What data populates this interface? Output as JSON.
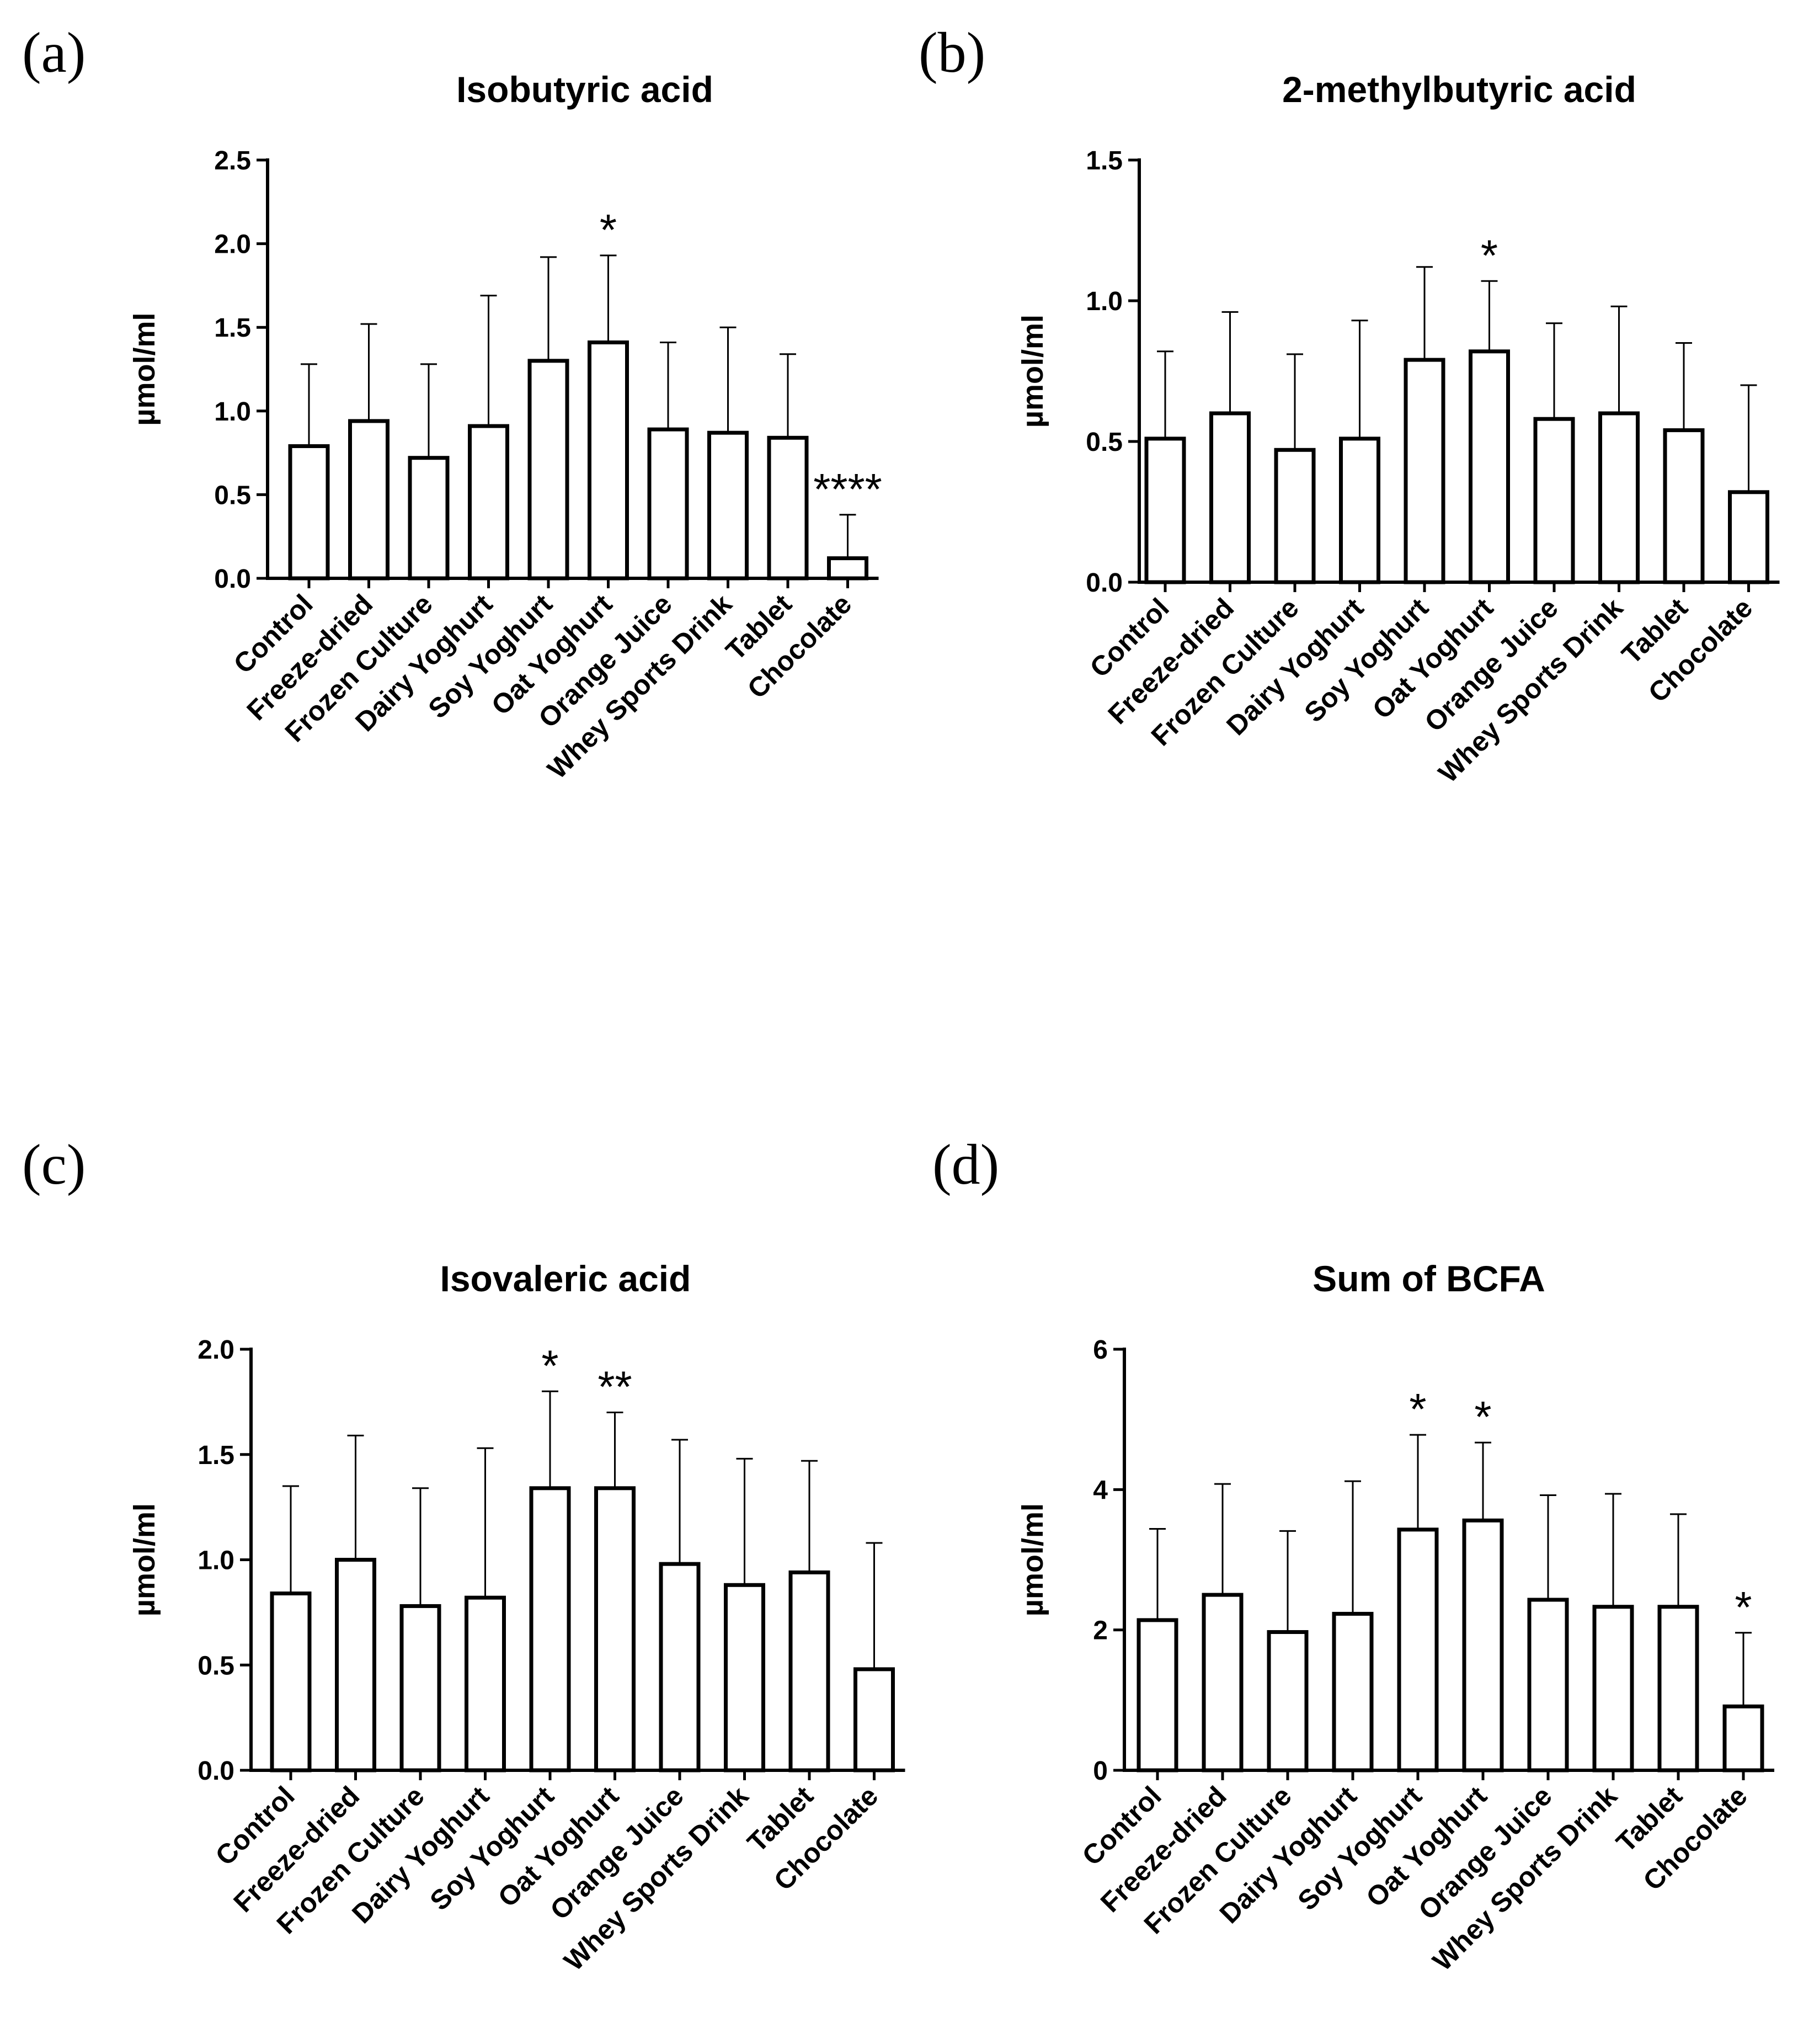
{
  "chart_data": [
    {
      "panel": "(a)",
      "type": "bar",
      "title": "Isobutyric acid",
      "ylabel": "µmol/ml",
      "xlabel": "",
      "categories": [
        "Control",
        "Freeze-dried",
        "Frozen Culture",
        "Dairy Yoghurt",
        "Soy Yoghurt",
        "Oat Yoghurt",
        "Orange Juice",
        "Whey Sports Drink",
        "Tablet",
        "Chocolate"
      ],
      "values": [
        0.79,
        0.94,
        0.72,
        0.91,
        1.3,
        1.41,
        0.89,
        0.87,
        0.84,
        0.12
      ],
      "error_upper": [
        1.28,
        1.52,
        1.28,
        1.69,
        1.92,
        1.93,
        1.41,
        1.5,
        1.34,
        0.38
      ],
      "significance": [
        "",
        "",
        "",
        "",
        "",
        "*",
        "",
        "",
        "",
        "****"
      ],
      "ylim": [
        0,
        2.5
      ],
      "yticks": [
        0.0,
        0.5,
        1.0,
        1.5,
        2.0,
        2.5
      ],
      "ytick_labels": [
        "0.0",
        "0.5",
        "1.0",
        "1.5",
        "2.0",
        "2.5"
      ],
      "grid": false
    },
    {
      "panel": "(b)",
      "type": "bar",
      "title": "2-methylbutyric acid",
      "ylabel": "µmol/ml",
      "xlabel": "",
      "categories": [
        "Control",
        "Freeze-dried",
        "Frozen Culture",
        "Dairy Yoghurt",
        "Soy Yoghurt",
        "Oat Yoghurt",
        "Orange Juice",
        "Whey Sports Drink",
        "Tablet",
        "Chocolate"
      ],
      "values": [
        0.51,
        0.6,
        0.47,
        0.51,
        0.79,
        0.82,
        0.58,
        0.6,
        0.54,
        0.32
      ],
      "error_upper": [
        0.82,
        0.96,
        0.81,
        0.93,
        1.12,
        1.07,
        0.92,
        0.98,
        0.85,
        0.7
      ],
      "significance": [
        "",
        "",
        "",
        "",
        "",
        "*",
        "",
        "",
        "",
        ""
      ],
      "ylim": [
        0,
        1.5
      ],
      "yticks": [
        0.0,
        0.5,
        1.0,
        1.5
      ],
      "ytick_labels": [
        "0.0",
        "0.5",
        "1.0",
        "1.5"
      ],
      "grid": false
    },
    {
      "panel": "(c)",
      "type": "bar",
      "title": "Isovaleric acid",
      "ylabel": "µmol/ml",
      "xlabel": "",
      "categories": [
        "Control",
        "Freeze-dried",
        "Frozen Culture",
        "Dairy Yoghurt",
        "Soy Yoghurt",
        "Oat Yoghurt",
        "Orange Juice",
        "Whey Sports Drink",
        "Tablet",
        "Chocolate"
      ],
      "values": [
        0.84,
        1.0,
        0.78,
        0.82,
        1.34,
        1.34,
        0.98,
        0.88,
        0.94,
        0.48
      ],
      "error_upper": [
        1.35,
        1.59,
        1.34,
        1.53,
        1.8,
        1.7,
        1.57,
        1.48,
        1.47,
        1.08
      ],
      "significance": [
        "",
        "",
        "",
        "",
        "*",
        "**",
        "",
        "",
        "",
        ""
      ],
      "ylim": [
        0,
        2.0
      ],
      "yticks": [
        0.0,
        0.5,
        1.0,
        1.5,
        2.0
      ],
      "ytick_labels": [
        "0.0",
        "0.5",
        "1.0",
        "1.5",
        "2.0"
      ],
      "grid": false
    },
    {
      "panel": "(d)",
      "type": "bar",
      "title": "Sum of BCFA",
      "ylabel": "µmol/ml",
      "xlabel": "",
      "categories": [
        "Control",
        "Freeze-dried",
        "Frozen Culture",
        "Dairy Yoghurt",
        "Soy Yoghurt",
        "Oat Yoghurt",
        "Orange Juice",
        "Whey Sports Drink",
        "Tablet",
        "Chocolate"
      ],
      "values": [
        2.14,
        2.5,
        1.97,
        2.23,
        3.43,
        3.56,
        2.43,
        2.33,
        2.33,
        0.91
      ],
      "error_upper": [
        3.44,
        4.08,
        3.41,
        4.12,
        4.78,
        4.67,
        3.92,
        3.94,
        3.65,
        1.96
      ],
      "significance": [
        "",
        "",
        "",
        "",
        "*",
        "*",
        "",
        "",
        "",
        "*"
      ],
      "ylim": [
        0,
        6
      ],
      "yticks": [
        0,
        2,
        4,
        6
      ],
      "ytick_labels": [
        "0",
        "2",
        "4",
        "6"
      ],
      "grid": false
    }
  ]
}
